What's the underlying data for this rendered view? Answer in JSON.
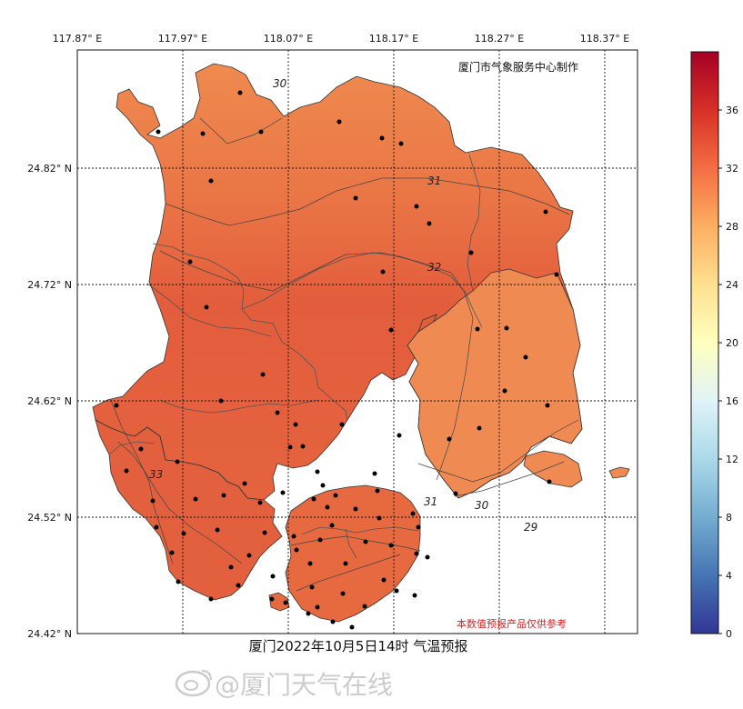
{
  "map": {
    "credit": "厦门市气象服务中心制作",
    "disclaimer": "本数值预报产品仅供参考",
    "caption": "厦门2022年10月5日14时  气温预报",
    "lon_ticks": [
      "117.87° E",
      "117.97° E",
      "118.07° E",
      "118.17° E",
      "118.27° E",
      "118.37° E"
    ],
    "lat_ticks": [
      "24.82° N",
      "24.72° N",
      "24.62° N",
      "24.52° N",
      "24.42° N"
    ],
    "contour_labels": [
      "30",
      "31",
      "32",
      "33",
      "31",
      "30",
      "29"
    ],
    "colors": {
      "land_base": "#e46640",
      "land_north": "#ef8a4f",
      "land_east": "#ef8850",
      "land_mid": "#e35c3c",
      "border": "#444444",
      "station": "#000000"
    }
  },
  "colorbar": {
    "ticks": [
      "36",
      "32",
      "28",
      "24",
      "20",
      "16",
      "12",
      "8",
      "4",
      "0"
    ],
    "range": [
      0,
      40
    ],
    "colormap": "RdYlBu_r"
  },
  "watermark": {
    "icon": "weibo-logo-icon",
    "text": "@厦门天气在线"
  }
}
